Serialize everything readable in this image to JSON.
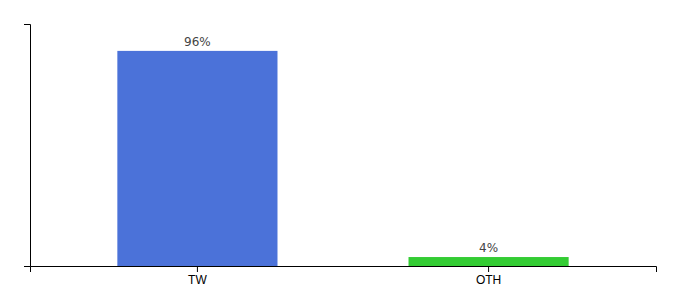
{
  "chart_data": {
    "type": "bar",
    "categories": [
      "TW",
      "OTH"
    ],
    "values": [
      96,
      4
    ],
    "colors": [
      "#4b72d9",
      "#33cc33"
    ],
    "value_labels": [
      "96%",
      "4%"
    ],
    "data_labels": true,
    "ylim": [
      0,
      108
    ],
    "tick_labels": "x"
  }
}
